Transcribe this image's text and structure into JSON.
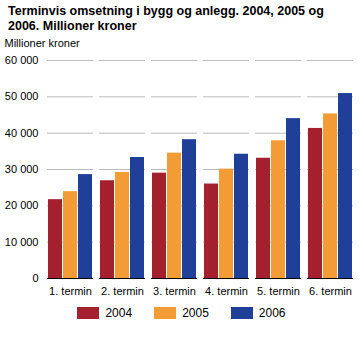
{
  "chart_data": {
    "type": "bar",
    "title": "Terminvis omsetning i bygg og anlegg. 2004, 2005 og 2006. Millioner kroner",
    "y_label": "Millioner kroner",
    "categories": [
      "1. termin",
      "2. termin",
      "3. termin",
      "4. termin",
      "5. termin",
      "6. termin"
    ],
    "series": [
      {
        "name": "2004",
        "color": "#a5202e",
        "values": [
          21700,
          26900,
          29000,
          26000,
          33100,
          41300
        ]
      },
      {
        "name": "2005",
        "color": "#f39b35",
        "values": [
          23900,
          29200,
          34500,
          30100,
          37900,
          45300
        ]
      },
      {
        "name": "2006",
        "color": "#1f3f98",
        "values": [
          28600,
          33300,
          38200,
          34200,
          44000,
          50900
        ]
      }
    ],
    "ylim": [
      0,
      60000
    ],
    "yticks": [
      0,
      {
        "value": 10000,
        "label": "10 000"
      },
      {
        "value": 20000,
        "label": "20 000"
      },
      {
        "value": 30000,
        "label": "30 000"
      },
      {
        "value": 40000,
        "label": "40 000"
      },
      {
        "value": 50000,
        "label": "50 000"
      },
      {
        "value": 60000,
        "label": "60 000"
      }
    ],
    "grid": true,
    "legend": "bottom"
  }
}
